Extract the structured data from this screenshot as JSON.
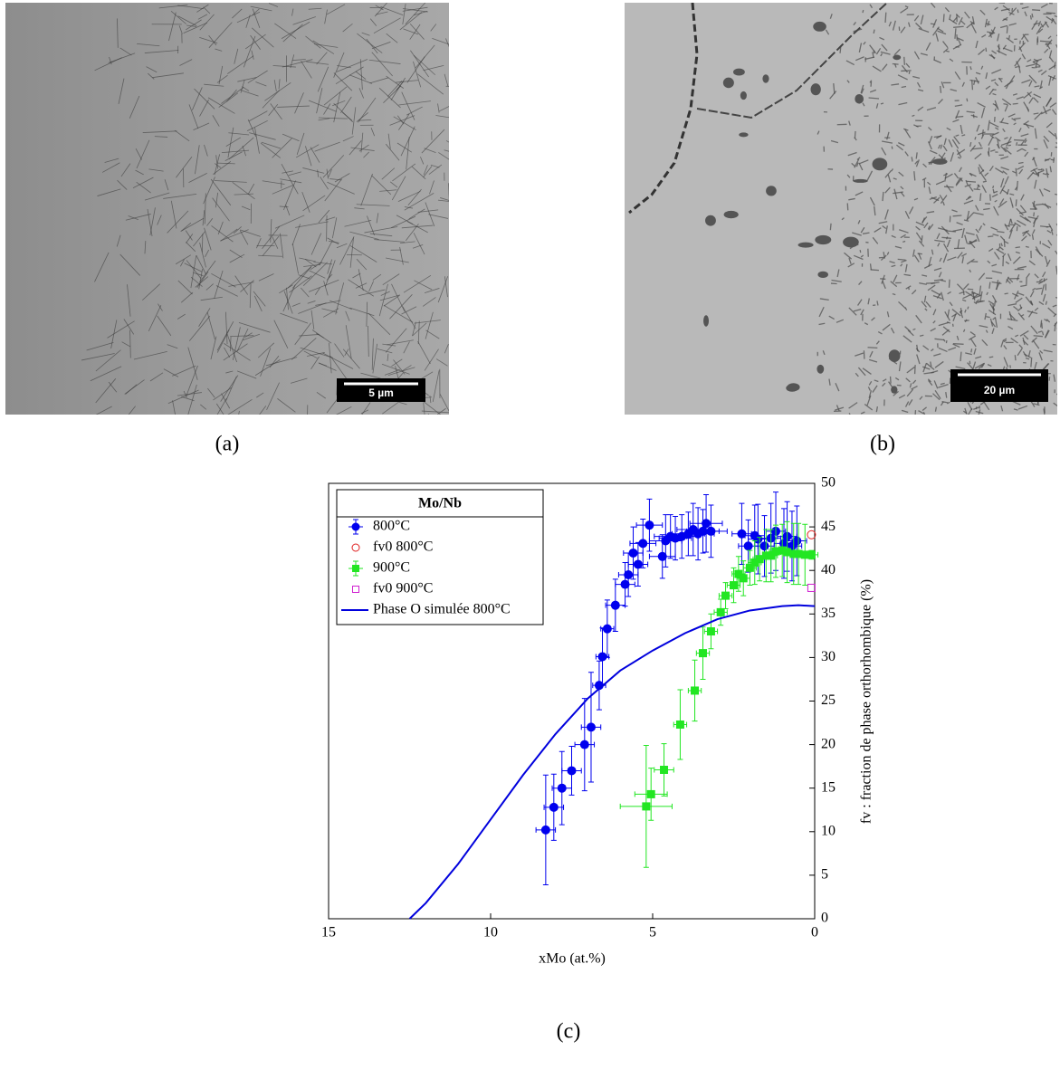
{
  "images": [
    {
      "label": "(a)",
      "scale_bar": "5 µm"
    },
    {
      "label": "(b)",
      "scale_bar": "20 µm"
    }
  ],
  "chart_label": "(c)",
  "chart_data": {
    "type": "scatter",
    "xlabel": "xMo (at.%)",
    "ylabel": "fv : fraction de phase orthorhombique (%)",
    "xlim": [
      15,
      0
    ],
    "xticks": [
      15,
      10,
      5,
      0
    ],
    "ylim": [
      0,
      50
    ],
    "yticks": [
      0,
      5,
      10,
      15,
      20,
      25,
      30,
      35,
      40,
      45,
      50
    ],
    "y_axis_side": "right",
    "legend_title": "Mo/Nb",
    "legend": "upper left",
    "series": [
      {
        "name": "800°C",
        "color": "#0000ee",
        "marker": "circle",
        "x": [
          8.3,
          8.05,
          7.8,
          7.5,
          7.1,
          6.9,
          6.65,
          6.55,
          6.4,
          6.15,
          5.85,
          5.75,
          5.6,
          5.45,
          5.3,
          5.1,
          4.7,
          4.6,
          4.45,
          4.3,
          4.1,
          3.9,
          3.75,
          3.6,
          3.45,
          3.35,
          3.2,
          2.25,
          2.05,
          1.85,
          1.75,
          1.55,
          1.35,
          1.2,
          0.95,
          0.85,
          0.7,
          0.55
        ],
        "values": [
          10.2,
          12.8,
          15.0,
          17.0,
          20.0,
          22.0,
          26.8,
          30.1,
          33.3,
          36.0,
          38.4,
          39.5,
          42.0,
          40.7,
          43.1,
          45.2,
          41.6,
          43.4,
          43.9,
          43.7,
          43.9,
          44.2,
          44.7,
          44.2,
          44.5,
          45.4,
          44.5,
          44.2,
          42.8,
          44.0,
          43.6,
          42.8,
          43.7,
          44.5,
          43.1,
          43.9,
          42.8,
          43.4
        ],
        "x_err": [
          0.3,
          0.3,
          0.3,
          0.3,
          0.3,
          0.3,
          0.2,
          0.2,
          0.2,
          0.3,
          0.3,
          0.3,
          0.3,
          0.3,
          0.4,
          0.4,
          0.4,
          0.5,
          0.5,
          0.5,
          0.5,
          0.5,
          0.5,
          0.5,
          0.5,
          0.5,
          0.5,
          0.3,
          0.3,
          0.3,
          0.3,
          0.3,
          0.3,
          0.3,
          0.3,
          0.3,
          0.3,
          0.3
        ],
        "y_err": [
          6.3,
          3.8,
          4.2,
          2.8,
          5.3,
          6.3,
          2.8,
          3.3,
          3.3,
          3.0,
          2.5,
          2.5,
          3.0,
          2.5,
          2.8,
          3.0,
          2.5,
          3.0,
          2.5,
          2.5,
          2.5,
          2.5,
          3.0,
          3.0,
          2.5,
          3.3,
          3.0,
          3.5,
          3.0,
          3.5,
          4.0,
          3.5,
          4.0,
          4.5,
          4.0,
          4.0,
          4.0,
          4.0
        ]
      },
      {
        "name": "fv0 800°C",
        "color": "#e02020",
        "marker": "open-circle",
        "x": [
          0.1
        ],
        "values": [
          44.1
        ]
      },
      {
        "name": "900°C",
        "color": "#22e622",
        "marker": "square",
        "x": [
          5.2,
          5.05,
          4.65,
          4.15,
          3.7,
          3.45,
          3.2,
          2.9,
          2.75,
          2.5,
          2.35,
          2.2,
          2.0,
          1.85,
          1.7,
          1.5,
          1.35,
          1.2,
          1.0,
          0.85,
          0.65,
          0.5,
          0.3,
          0.1
        ],
        "values": [
          12.9,
          14.3,
          17.1,
          22.3,
          26.2,
          30.5,
          33.0,
          35.2,
          37.1,
          38.3,
          39.6,
          39.1,
          40.3,
          40.9,
          41.3,
          41.7,
          41.7,
          42.2,
          42.3,
          42.1,
          41.9,
          41.9,
          41.8,
          41.8
        ],
        "x_err": [
          0.8,
          0.5,
          0.3,
          0.2,
          0.2,
          0.2,
          0.2,
          0.2,
          0.2,
          0.2,
          0.2,
          0.2,
          0.2,
          0.2,
          0.2,
          0.2,
          0.2,
          0.2,
          0.2,
          0.2,
          0.2,
          0.2,
          0.2,
          0.2
        ],
        "y_err": [
          7.0,
          3.0,
          3.0,
          4.0,
          3.5,
          3.0,
          2.0,
          1.5,
          1.5,
          2.0,
          2.0,
          2.0,
          2.0,
          2.5,
          2.5,
          3.0,
          3.0,
          3.0,
          3.0,
          3.5,
          3.5,
          3.5,
          3.5,
          0.5
        ]
      },
      {
        "name": "fv0 900°C",
        "color": "#d020d0",
        "marker": "open-square",
        "x": [
          0.1
        ],
        "values": [
          38.0
        ]
      },
      {
        "name": "Phase O simulée 800°C",
        "color": "#0000dd",
        "marker": "line",
        "x": [
          12.5,
          12,
          11,
          10,
          9,
          8,
          7,
          6,
          5,
          4,
          3,
          2,
          1,
          0.5,
          0
        ],
        "values": [
          0,
          1.8,
          6.3,
          11.4,
          16.5,
          21.2,
          25.3,
          28.5,
          30.8,
          32.8,
          34.4,
          35.4,
          35.9,
          36.0,
          35.9
        ]
      }
    ]
  }
}
